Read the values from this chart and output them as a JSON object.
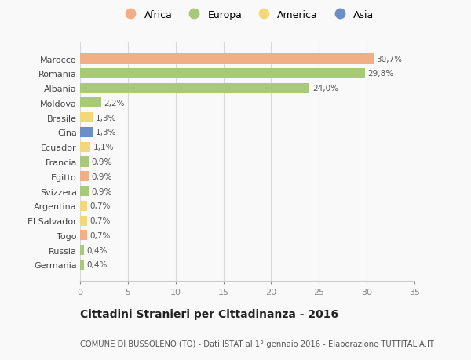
{
  "countries": [
    "Marocco",
    "Romania",
    "Albania",
    "Moldova",
    "Brasile",
    "Cina",
    "Ecuador",
    "Francia",
    "Egitto",
    "Svizzera",
    "Argentina",
    "El Salvador",
    "Togo",
    "Russia",
    "Germania"
  ],
  "values": [
    30.7,
    29.8,
    24.0,
    2.2,
    1.3,
    1.3,
    1.1,
    0.9,
    0.9,
    0.9,
    0.7,
    0.7,
    0.7,
    0.4,
    0.4
  ],
  "labels": [
    "30,7%",
    "29,8%",
    "24,0%",
    "2,2%",
    "1,3%",
    "1,3%",
    "1,1%",
    "0,9%",
    "0,9%",
    "0,9%",
    "0,7%",
    "0,7%",
    "0,7%",
    "0,4%",
    "0,4%"
  ],
  "continents": [
    "Africa",
    "Europa",
    "Europa",
    "Europa",
    "America",
    "Asia",
    "America",
    "Europa",
    "Africa",
    "Europa",
    "America",
    "America",
    "Africa",
    "Europa",
    "Europa"
  ],
  "colors": {
    "Africa": "#F2AE87",
    "Europa": "#A8C87A",
    "America": "#F2D87A",
    "Asia": "#6B8EC8"
  },
  "legend_order": [
    "Africa",
    "Europa",
    "America",
    "Asia"
  ],
  "xlim": [
    0,
    35
  ],
  "xticks": [
    0,
    5,
    10,
    15,
    20,
    25,
    30,
    35
  ],
  "title": "Cittadini Stranieri per Cittadinanza - 2016",
  "subtitle": "COMUNE DI BUSSOLENO (TO) - Dati ISTAT al 1° gennaio 2016 - Elaborazione TUTTITALIA.IT",
  "background_color": "#f9f9f9",
  "grid_color": "#d8d8d8",
  "bar_height": 0.7
}
